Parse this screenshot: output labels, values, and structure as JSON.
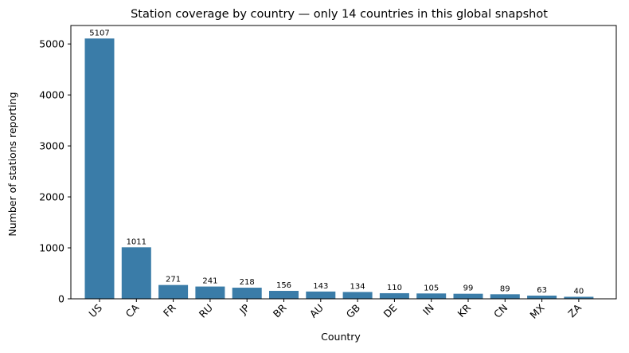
{
  "chart_data": {
    "type": "bar",
    "title": "Station coverage by country — only 14 countries in this global snapshot",
    "xlabel": "Country",
    "ylabel": "Number of stations reporting",
    "categories": [
      "US",
      "CA",
      "FR",
      "RU",
      "JP",
      "BR",
      "AU",
      "GB",
      "DE",
      "IN",
      "KR",
      "CN",
      "MX",
      "ZA"
    ],
    "values": [
      5107,
      1011,
      271,
      241,
      218,
      156,
      143,
      134,
      110,
      105,
      99,
      89,
      63,
      40
    ],
    "ylim": [
      0,
      5362
    ],
    "yticks": [
      0,
      1000,
      2000,
      3000,
      4000,
      5000
    ],
    "bar_color": "#3a7ca8",
    "grid": false,
    "legend": "none",
    "data_labels": true
  }
}
